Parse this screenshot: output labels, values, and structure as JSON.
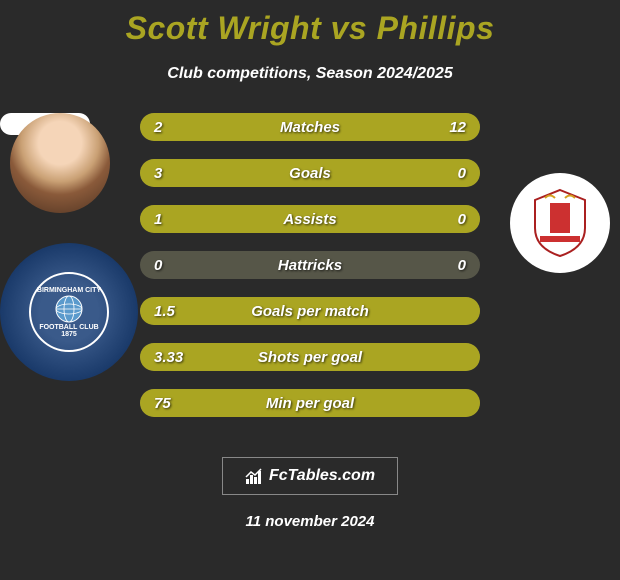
{
  "header": {
    "title": "Scott Wright vs Phillips",
    "subtitle": "Club competitions, Season 2024/2025"
  },
  "colors": {
    "background": "#2a2a2a",
    "accent": "#aaa522",
    "bar_bg": "#565648",
    "text": "#ffffff"
  },
  "players": {
    "left": {
      "name": "Scott Wright",
      "avatar_bg": "#f5d5b8",
      "badge_bg": "#1a3a6a",
      "badge_text_top": "BIRMINGHAM CITY",
      "badge_text_mid": "FOOTBALL CLUB",
      "badge_year": "1875"
    },
    "right": {
      "name": "Phillips",
      "avatar_bg": "#ffffff",
      "badge_bg": "#ffffff"
    }
  },
  "stats": [
    {
      "label": "Matches",
      "left_value": "2",
      "right_value": "12",
      "left_pct": 14,
      "right_pct": 86
    },
    {
      "label": "Goals",
      "left_value": "3",
      "right_value": "0",
      "left_pct": 100,
      "right_pct": 0
    },
    {
      "label": "Assists",
      "left_value": "1",
      "right_value": "0",
      "left_pct": 100,
      "right_pct": 0
    },
    {
      "label": "Hattricks",
      "left_value": "0",
      "right_value": "0",
      "left_pct": 0,
      "right_pct": 0
    },
    {
      "label": "Goals per match",
      "left_value": "1.5",
      "right_value": "",
      "left_pct": 100,
      "right_pct": 0
    },
    {
      "label": "Shots per goal",
      "left_value": "3.33",
      "right_value": "",
      "left_pct": 100,
      "right_pct": 0
    },
    {
      "label": "Min per goal",
      "left_value": "75",
      "right_value": "",
      "left_pct": 100,
      "right_pct": 0
    }
  ],
  "footer": {
    "logo_text": "FcTables.com",
    "date": "11 november 2024"
  }
}
